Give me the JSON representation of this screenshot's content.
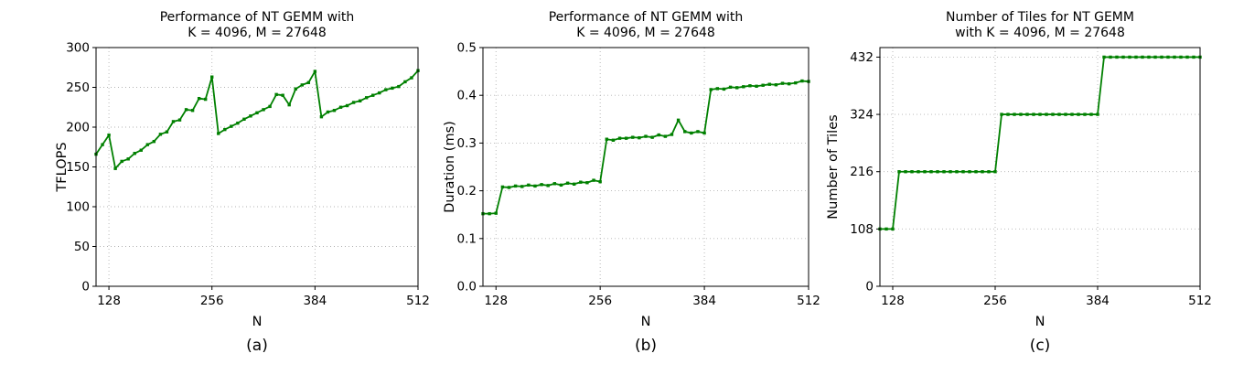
{
  "figure": {
    "background": "#ffffff",
    "line_color": "#008000",
    "grid_color": "#b3b3b3",
    "spine_color": "#000000"
  },
  "shared": {
    "x_values": [
      112,
      120,
      128,
      136,
      144,
      152,
      160,
      168,
      176,
      184,
      192,
      200,
      208,
      216,
      224,
      232,
      240,
      248,
      256,
      264,
      272,
      280,
      288,
      296,
      304,
      312,
      320,
      328,
      336,
      344,
      352,
      360,
      368,
      376,
      384,
      392,
      400,
      408,
      416,
      424,
      432,
      440,
      448,
      456,
      464,
      472,
      480,
      488,
      496,
      504,
      512
    ],
    "xlim": [
      112,
      512
    ],
    "xticks": [
      128,
      256,
      384,
      512
    ],
    "xtick_labels": [
      "128",
      "256",
      "384",
      "512"
    ]
  },
  "chart_data": [
    {
      "type": "line",
      "id": "a",
      "title_line1": "Performance of NT GEMM with",
      "title_line2": "K = 4096, M = 27648",
      "xlabel": "N",
      "ylabel": "TFLOPS",
      "caption": "(a)",
      "grid": true,
      "legend": "none",
      "ylim": [
        0,
        300
      ],
      "yticks": [
        0,
        50,
        100,
        150,
        200,
        250,
        300
      ],
      "ytick_labels": [
        "0",
        "50",
        "100",
        "150",
        "200",
        "250",
        "300"
      ],
      "values": [
        166,
        178,
        190,
        148,
        157,
        160,
        167,
        171,
        178,
        182,
        191,
        194,
        207,
        209,
        222,
        221,
        236,
        235,
        263,
        192,
        197,
        201,
        205,
        210,
        214,
        218,
        222,
        226,
        241,
        240,
        228,
        248,
        253,
        256,
        270,
        213,
        219,
        221,
        225,
        227,
        231,
        233,
        237,
        240,
        243,
        247,
        249,
        251,
        257,
        262,
        271
      ]
    },
    {
      "type": "line",
      "id": "b",
      "title_line1": "Performance of NT GEMM with",
      "title_line2": "K = 4096, M = 27648",
      "xlabel": "N",
      "ylabel": "Duration (ms)",
      "caption": "(b)",
      "grid": true,
      "legend": "none",
      "ylim": [
        0,
        0.5
      ],
      "yticks": [
        0,
        0.1,
        0.2,
        0.3,
        0.4,
        0.5
      ],
      "ytick_labels": [
        "0.0",
        "0.1",
        "0.2",
        "0.3",
        "0.4",
        "0.5"
      ],
      "values": [
        0.152,
        0.152,
        0.153,
        0.208,
        0.207,
        0.21,
        0.209,
        0.212,
        0.21,
        0.213,
        0.211,
        0.215,
        0.212,
        0.216,
        0.214,
        0.218,
        0.217,
        0.222,
        0.219,
        0.308,
        0.306,
        0.31,
        0.31,
        0.312,
        0.311,
        0.314,
        0.312,
        0.317,
        0.314,
        0.318,
        0.348,
        0.324,
        0.321,
        0.324,
        0.321,
        0.412,
        0.414,
        0.413,
        0.417,
        0.416,
        0.418,
        0.42,
        0.419,
        0.421,
        0.423,
        0.422,
        0.425,
        0.424,
        0.426,
        0.43,
        0.429
      ]
    },
    {
      "type": "line",
      "id": "c",
      "title_line1": "Number of Tiles for NT GEMM",
      "title_line2": "with K = 4096, M = 27648",
      "xlabel": "N",
      "ylabel": "Number of Tiles",
      "caption": "(c)",
      "grid": true,
      "legend": "none",
      "ylim": [
        0,
        450
      ],
      "yticks": [
        0,
        108,
        216,
        324,
        432
      ],
      "ytick_labels": [
        "0",
        "108",
        "216",
        "324",
        "432"
      ],
      "values": [
        108,
        108,
        108,
        216,
        216,
        216,
        216,
        216,
        216,
        216,
        216,
        216,
        216,
        216,
        216,
        216,
        216,
        216,
        216,
        324,
        324,
        324,
        324,
        324,
        324,
        324,
        324,
        324,
        324,
        324,
        324,
        324,
        324,
        324,
        324,
        432,
        432,
        432,
        432,
        432,
        432,
        432,
        432,
        432,
        432,
        432,
        432,
        432,
        432,
        432,
        432
      ]
    }
  ]
}
